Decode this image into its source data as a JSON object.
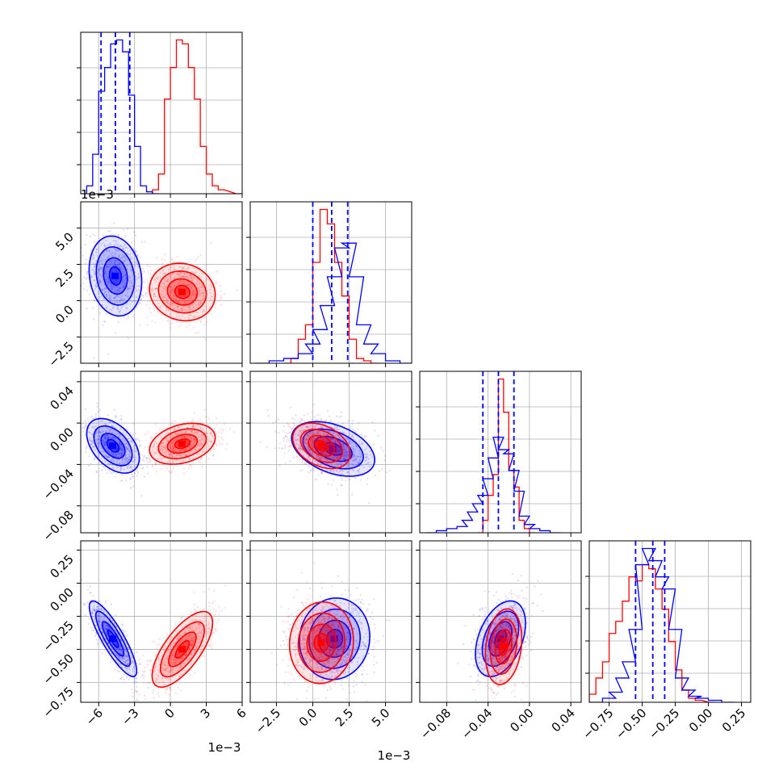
{
  "chart_data": {
    "type": "corner",
    "grid": true,
    "colors": {
      "blue": "#0000ff",
      "red": "#ff0000",
      "grid": "#b0b0b0"
    },
    "params": [
      {
        "range": [
          -7.5,
          6.0
        ],
        "ticks": [
          -6,
          -3,
          0,
          3,
          6
        ],
        "tick_labels": [
          "−6",
          "−3",
          "0",
          "3",
          "6"
        ],
        "offset": "1e−3",
        "blue_quantiles": [
          -5.8,
          -4.6,
          -3.4
        ]
      },
      {
        "range": [
          -4.3,
          6.8
        ],
        "ticks": [
          -2.5,
          0.0,
          2.5,
          5.0
        ],
        "tick_labels": [
          "−2.5",
          "0.0",
          "2.5",
          "5.0"
        ],
        "offset": "1e−3",
        "blue_quantiles": [
          0.0,
          1.3,
          2.4
        ]
      },
      {
        "range": [
          -0.106,
          0.05
        ],
        "ticks": [
          -0.08,
          -0.04,
          0.0,
          0.04
        ],
        "tick_labels": [
          "−0.08",
          "−0.04",
          "0.00",
          "0.04"
        ],
        "offset": "",
        "blue_quantiles": [
          -0.045,
          -0.03,
          -0.015
        ]
      },
      {
        "range": [
          -0.9,
          0.32
        ],
        "ticks": [
          -0.75,
          -0.5,
          -0.25,
          0.0,
          0.25
        ],
        "tick_labels": [
          "−0.75",
          "−0.50",
          "−0.25",
          "0.00",
          "0.25"
        ],
        "offset": "",
        "blue_quantiles": [
          -0.55,
          -0.42,
          -0.33
        ]
      }
    ],
    "histograms": [
      {
        "param": 0,
        "blue": [
          [
            -7.5,
            0.0
          ],
          [
            -7.0,
            0.2
          ],
          [
            -6.5,
            1.0
          ],
          [
            -6.0,
            2.6
          ],
          [
            -5.5,
            3.2
          ],
          [
            -5.0,
            3.8
          ],
          [
            -4.5,
            3.9
          ],
          [
            -4.0,
            3.6
          ],
          [
            -3.5,
            2.5
          ],
          [
            -3.0,
            1.2
          ],
          [
            -2.5,
            0.2
          ],
          [
            -2.0,
            0.05
          ],
          [
            -1.5,
            0.0
          ]
        ],
        "red": [
          [
            -2.0,
            0.0
          ],
          [
            -1.5,
            0.1
          ],
          [
            -1.0,
            0.5
          ],
          [
            -0.5,
            2.4
          ],
          [
            0.0,
            3.2
          ],
          [
            0.5,
            3.9
          ],
          [
            1.0,
            3.8
          ],
          [
            1.5,
            3.2
          ],
          [
            2.0,
            2.4
          ],
          [
            2.5,
            1.2
          ],
          [
            3.0,
            0.5
          ],
          [
            3.5,
            0.2
          ],
          [
            4.0,
            0.1
          ],
          [
            5.5,
            0.0
          ]
        ]
      },
      {
        "param": 1,
        "blue": [
          [
            -4.0,
            0.0
          ],
          [
            -3.0,
            0.05
          ],
          [
            -2.0,
            0.1
          ],
          [
            -1.0,
            0.2
          ],
          [
            -0.5,
            0.4
          ],
          [
            0.0,
            0.7
          ],
          [
            0.5,
            1.2
          ],
          [
            1.0,
            1.8
          ],
          [
            1.5,
            2.4
          ],
          [
            2.0,
            2.5
          ],
          [
            2.5,
            1.8
          ],
          [
            3.0,
            0.8
          ],
          [
            3.5,
            0.4
          ],
          [
            4.0,
            0.2
          ],
          [
            5.0,
            0.05
          ],
          [
            6.0,
            0.0
          ]
        ],
        "red": [
          [
            -2.0,
            0.0
          ],
          [
            -1.5,
            0.1
          ],
          [
            -1.0,
            0.5
          ],
          [
            -0.5,
            0.8
          ],
          [
            0.0,
            2.1
          ],
          [
            0.5,
            3.2
          ],
          [
            1.0,
            2.9
          ],
          [
            1.5,
            2.1
          ],
          [
            2.0,
            1.4
          ],
          [
            2.5,
            0.5
          ],
          [
            3.0,
            0.1
          ],
          [
            3.5,
            0.05
          ],
          [
            4.0,
            0.0
          ]
        ]
      },
      {
        "param": 2,
        "blue": [
          [
            -0.1,
            0.0
          ],
          [
            -0.09,
            0.05
          ],
          [
            -0.08,
            0.1
          ],
          [
            -0.07,
            0.15
          ],
          [
            -0.065,
            0.3
          ],
          [
            -0.06,
            0.5
          ],
          [
            -0.055,
            0.7
          ],
          [
            -0.05,
            0.9
          ],
          [
            -0.045,
            1.3
          ],
          [
            -0.04,
            1.8
          ],
          [
            -0.035,
            2.3
          ],
          [
            -0.03,
            2.0
          ],
          [
            -0.025,
            1.9
          ],
          [
            -0.02,
            1.5
          ],
          [
            -0.015,
            1.0
          ],
          [
            -0.01,
            0.4
          ],
          [
            -0.005,
            0.2
          ],
          [
            0.0,
            0.1
          ],
          [
            0.01,
            0.05
          ],
          [
            0.02,
            0.0
          ]
        ],
        "red": [
          [
            -0.05,
            0.0
          ],
          [
            -0.045,
            0.3
          ],
          [
            -0.04,
            0.9
          ],
          [
            -0.035,
            1.4
          ],
          [
            -0.03,
            3.7
          ],
          [
            -0.025,
            2.9
          ],
          [
            -0.02,
            1.5
          ],
          [
            -0.015,
            1.1
          ],
          [
            -0.01,
            0.3
          ],
          [
            -0.005,
            0.1
          ],
          [
            0.0,
            0.0
          ]
        ]
      },
      {
        "param": 3,
        "blue": [
          [
            -0.9,
            0.0
          ],
          [
            -0.8,
            0.1
          ],
          [
            -0.75,
            0.25
          ],
          [
            -0.7,
            0.6
          ],
          [
            -0.65,
            1.0
          ],
          [
            -0.6,
            1.8
          ],
          [
            -0.55,
            3.4
          ],
          [
            -0.5,
            3.8
          ],
          [
            -0.45,
            3.5
          ],
          [
            -0.4,
            3.1
          ],
          [
            -0.35,
            2.8
          ],
          [
            -0.3,
            1.8
          ],
          [
            -0.25,
            0.6
          ],
          [
            -0.2,
            0.3
          ],
          [
            -0.15,
            0.15
          ],
          [
            -0.1,
            0.1
          ],
          [
            0.0,
            0.05
          ],
          [
            0.1,
            0.0
          ]
        ],
        "red": [
          [
            -0.9,
            0.2
          ],
          [
            -0.85,
            0.6
          ],
          [
            -0.8,
            1.0
          ],
          [
            -0.75,
            1.7
          ],
          [
            -0.7,
            2.0
          ],
          [
            -0.65,
            2.5
          ],
          [
            -0.6,
            3.1
          ],
          [
            -0.55,
            3.0
          ],
          [
            -0.5,
            3.4
          ],
          [
            -0.45,
            3.3
          ],
          [
            -0.4,
            2.8
          ],
          [
            -0.35,
            2.3
          ],
          [
            -0.3,
            1.5
          ],
          [
            -0.25,
            0.8
          ],
          [
            -0.2,
            0.3
          ],
          [
            -0.15,
            0.1
          ],
          [
            -0.1,
            0.05
          ],
          [
            0.0,
            0.0
          ]
        ]
      }
    ],
    "pairs": [
      {
        "x": 0,
        "y": 1,
        "blue": {
          "center": [
            -4.6,
            1.7
          ],
          "sigma": [
            1.0,
            1.25
          ],
          "corr": -0.15
        },
        "red": {
          "center": [
            1.0,
            0.6
          ],
          "sigma": [
            1.25,
            0.9
          ],
          "corr": -0.1
        }
      },
      {
        "x": 0,
        "y": 2,
        "blue": {
          "center": [
            -4.8,
            -0.022
          ],
          "sigma": [
            1.0,
            0.012
          ],
          "corr": -0.45
        },
        "red": {
          "center": [
            1.0,
            -0.02
          ],
          "sigma": [
            1.25,
            0.009
          ],
          "corr": 0.3
        }
      },
      {
        "x": 1,
        "y": 2,
        "blue": {
          "center": [
            1.4,
            -0.025
          ],
          "sigma": [
            1.3,
            0.012
          ],
          "corr": -0.4
        },
        "red": {
          "center": [
            0.6,
            -0.022
          ],
          "sigma": [
            0.9,
            0.01
          ],
          "corr": -0.35
        }
      },
      {
        "x": 0,
        "y": 3,
        "blue": {
          "center": [
            -4.8,
            -0.42
          ],
          "sigma": [
            0.9,
            0.13
          ],
          "corr": -0.85
        },
        "red": {
          "center": [
            1.0,
            -0.5
          ],
          "sigma": [
            1.15,
            0.13
          ],
          "corr": 0.7
        }
      },
      {
        "x": 1,
        "y": 3,
        "blue": {
          "center": [
            1.5,
            -0.42
          ],
          "sigma": [
            1.1,
            0.14
          ],
          "corr": 0.05
        },
        "red": {
          "center": [
            0.6,
            -0.45
          ],
          "sigma": [
            1.0,
            0.14
          ],
          "corr": 0.05
        }
      },
      {
        "x": 2,
        "y": 3,
        "blue": {
          "center": [
            -0.028,
            -0.42
          ],
          "sigma": [
            0.011,
            0.13
          ],
          "corr": 0.4
        },
        "red": {
          "center": [
            -0.025,
            -0.48
          ],
          "sigma": [
            0.008,
            0.13
          ],
          "corr": 0.2
        }
      }
    ]
  }
}
